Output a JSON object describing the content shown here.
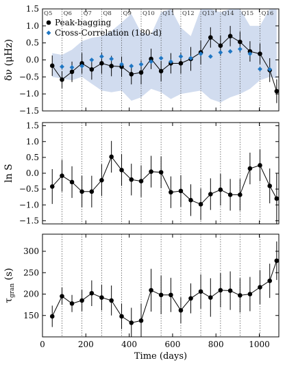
{
  "chart_data": [
    {
      "type": "line",
      "panel": "top",
      "ylabel": "δν (μHz)",
      "xlim": [
        0,
        1090
      ],
      "ylim": [
        -1.5,
        1.5
      ],
      "yticks": [
        "−1.5",
        "−1.0",
        "−0.5",
        "0.0",
        "0.5",
        "1.0",
        "1.5"
      ],
      "legend": {
        "placement": "top-left",
        "entries": [
          "Peak-bagging",
          "Cross-Correlation (180-d)"
        ]
      },
      "quarter_labels": [
        "Q5",
        "Q6",
        "Q7",
        "Q8",
        "Q9",
        "Q10",
        "Q11",
        "Q12",
        "Q13",
        "Q14",
        "Q15",
        "Q16"
      ],
      "quarter_boundaries": [
        90,
        182,
        273,
        365,
        455,
        547,
        638,
        730,
        821,
        911,
        1003
      ],
      "series": [
        {
          "name": "Peak-bagging",
          "color": "#000000",
          "x": [
            45,
            90,
            136,
            182,
            227,
            273,
            318,
            365,
            410,
            455,
            501,
            547,
            592,
            638,
            684,
            730,
            775,
            821,
            866,
            911,
            957,
            1003,
            1048,
            1080
          ],
          "y": [
            -0.17,
            -0.58,
            -0.35,
            -0.1,
            -0.28,
            -0.1,
            -0.18,
            -0.2,
            -0.42,
            -0.37,
            0.03,
            -0.33,
            -0.1,
            -0.1,
            0.03,
            0.22,
            0.66,
            0.42,
            0.7,
            0.53,
            0.25,
            0.18,
            -0.3,
            -0.92
          ],
          "err": [
            0.3,
            0.25,
            0.3,
            0.3,
            0.3,
            0.3,
            0.3,
            0.3,
            0.3,
            0.35,
            0.3,
            0.3,
            0.3,
            0.3,
            0.35,
            0.35,
            0.3,
            0.3,
            0.3,
            0.3,
            0.3,
            0.3,
            0.35,
            0.35
          ]
        },
        {
          "name": "Cross-Correlation (180-d)",
          "color": "#1f77c4",
          "x": [
            90,
            136,
            182,
            227,
            273,
            318,
            365,
            410,
            455,
            501,
            547,
            592,
            638,
            684,
            730,
            775,
            821,
            866,
            911,
            957,
            1003,
            1048
          ],
          "y": [
            -0.2,
            -0.22,
            -0.18,
            0.0,
            0.1,
            0.03,
            -0.13,
            -0.18,
            -0.13,
            -0.05,
            0.05,
            -0.05,
            0.1,
            0.05,
            0.18,
            0.1,
            0.22,
            0.25,
            0.32,
            0.18,
            -0.27,
            -0.28
          ]
        }
      ],
      "band": {
        "x": [
          45,
          90,
          136,
          182,
          227,
          273,
          318,
          365,
          410,
          455,
          501,
          547,
          592,
          638,
          684,
          730,
          775,
          821,
          866,
          911,
          957,
          1003,
          1048,
          1080
        ],
        "upper": [
          0.2,
          0.15,
          0.3,
          0.55,
          0.65,
          0.7,
          0.85,
          1.1,
          1.35,
          0.8,
          0.75,
          1.4,
          1.5,
          0.95,
          0.7,
          1.5,
          1.5,
          1.4,
          1.5,
          1.5,
          1.0,
          1.0,
          1.5,
          1.5
        ],
        "lower": [
          -0.5,
          -0.55,
          -0.6,
          -0.5,
          -0.7,
          -0.9,
          -0.95,
          -0.9,
          -1.2,
          -1.1,
          -0.85,
          -0.95,
          -1.15,
          -1.0,
          -0.95,
          -0.9,
          -1.15,
          -1.25,
          -1.1,
          -1.0,
          -0.85,
          -0.6,
          -0.5,
          -0.55
        ]
      }
    },
    {
      "type": "line",
      "panel": "middle",
      "ylabel": "ln S",
      "xlim": [
        0,
        1090
      ],
      "ylim": [
        -1.6,
        1.6
      ],
      "yticks": [
        "−1.5",
        "−1.0",
        "−0.5",
        "0.0",
        "0.5",
        "1.0",
        "1.5"
      ],
      "quarter_boundaries": [
        90,
        182,
        273,
        365,
        455,
        547,
        638,
        730,
        821,
        911,
        1003
      ],
      "series": [
        {
          "name": "ln S",
          "color": "#000000",
          "x": [
            45,
            90,
            136,
            182,
            227,
            273,
            318,
            365,
            410,
            455,
            501,
            547,
            592,
            638,
            684,
            730,
            775,
            821,
            866,
            911,
            957,
            1003,
            1048,
            1080
          ],
          "y": [
            -0.42,
            -0.08,
            -0.28,
            -0.58,
            -0.58,
            -0.22,
            0.52,
            0.1,
            -0.2,
            -0.25,
            0.05,
            0.03,
            -0.6,
            -0.56,
            -0.85,
            -0.98,
            -0.66,
            -0.52,
            -0.68,
            -0.68,
            0.15,
            0.25,
            -0.4,
            -0.8
          ],
          "err": [
            0.55,
            0.5,
            0.5,
            0.5,
            0.5,
            0.5,
            0.5,
            0.5,
            0.5,
            0.5,
            0.5,
            0.5,
            0.5,
            0.5,
            0.5,
            0.5,
            0.5,
            0.5,
            0.5,
            0.5,
            0.5,
            0.5,
            0.55,
            0.8
          ]
        }
      ]
    },
    {
      "type": "line",
      "panel": "bottom",
      "ylabel": "τgran (s)",
      "xlabel": "Time (days)",
      "xlim": [
        0,
        1090
      ],
      "xticks": [
        "0",
        "200",
        "400",
        "600",
        "800",
        "1000"
      ],
      "ylim": [
        100,
        340
      ],
      "yticks": [
        "150",
        "200",
        "250",
        "300"
      ],
      "quarter_boundaries": [
        90,
        182,
        273,
        365,
        455,
        547,
        638,
        730,
        821,
        911,
        1003
      ],
      "series": [
        {
          "name": "τgran",
          "color": "#000000",
          "x": [
            45,
            90,
            136,
            182,
            227,
            273,
            318,
            365,
            410,
            455,
            501,
            547,
            592,
            638,
            684,
            730,
            775,
            821,
            866,
            911,
            957,
            1003,
            1048,
            1080
          ],
          "y": [
            148,
            195,
            178,
            185,
            202,
            192,
            185,
            148,
            133,
            138,
            209,
            198,
            198,
            162,
            190,
            206,
            192,
            209,
            208,
            197,
            200,
            216,
            231,
            278
          ],
          "err": [
            25,
            20,
            20,
            25,
            30,
            30,
            35,
            30,
            35,
            40,
            50,
            45,
            40,
            30,
            35,
            40,
            45,
            40,
            45,
            40,
            40,
            40,
            40,
            45
          ]
        }
      ]
    }
  ]
}
